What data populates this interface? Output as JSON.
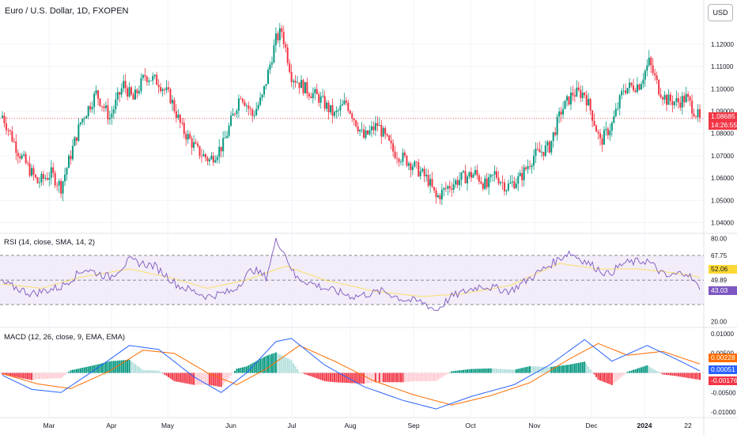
{
  "header": {
    "title": "Euro / U.S. Dollar, 1D, FXOPEN",
    "currency": "USD"
  },
  "rsi_title": "RSI (14, close, SMA, 14, 2)",
  "macd_title": "MACD (12, 26, close, 9, EMA, EMA)",
  "price_badge": {
    "value": "1.08685",
    "countdown": "14:26:55"
  },
  "rsi_badges": {
    "sma": "52.06",
    "rsi": "43.03"
  },
  "macd_badges": {
    "signal": "0.00228",
    "macd": "0.00051",
    "hist": "-0.00176"
  },
  "colors": {
    "up": "#089981",
    "down": "#f23645",
    "up_light": "#b2dfdb",
    "down_light": "#ffcdd2",
    "rsi_line": "#7e57c2",
    "rsi_sma": "#fdd835",
    "macd_line": "#2962ff",
    "signal_line": "#ff6d00",
    "band": "#ede7f6"
  },
  "chart_data": [
    {
      "type": "candlestick",
      "title": "Euro / U.S. Dollar, 1D, FXOPEN",
      "x_ticks": [
        "Mar",
        "Apr",
        "May",
        "Jun",
        "Jul",
        "Aug",
        "Sep",
        "Oct",
        "Nov",
        "Dec",
        "2024",
        "22"
      ],
      "y_ticks": [
        "1.04000",
        "1.05000",
        "1.06000",
        "1.07000",
        "1.08000",
        "1.09000",
        "1.10000",
        "1.11000",
        "1.12000"
      ],
      "ylim": [
        1.037,
        1.132
      ],
      "last_price": 1.08685,
      "anchors": [
        [
          0,
          1.088
        ],
        [
          8,
          1.072
        ],
        [
          18,
          1.058
        ],
        [
          25,
          1.062
        ],
        [
          30,
          1.056
        ],
        [
          40,
          1.085
        ],
        [
          48,
          1.098
        ],
        [
          55,
          1.087
        ],
        [
          62,
          1.102
        ],
        [
          67,
          1.095
        ],
        [
          73,
          1.106
        ],
        [
          80,
          1.103
        ],
        [
          86,
          1.096
        ],
        [
          92,
          1.082
        ],
        [
          100,
          1.072
        ],
        [
          106,
          1.068
        ],
        [
          113,
          1.075
        ],
        [
          122,
          1.098
        ],
        [
          128,
          1.088
        ],
        [
          133,
          1.096
        ],
        [
          140,
          1.122
        ],
        [
          143,
          1.126
        ],
        [
          148,
          1.106
        ],
        [
          155,
          1.1
        ],
        [
          162,
          1.096
        ],
        [
          170,
          1.088
        ],
        [
          176,
          1.094
        ],
        [
          185,
          1.078
        ],
        [
          192,
          1.084
        ],
        [
          200,
          1.072
        ],
        [
          210,
          1.066
        ],
        [
          218,
          1.059
        ],
        [
          222,
          1.051
        ],
        [
          228,
          1.056
        ],
        [
          235,
          1.06
        ],
        [
          242,
          1.062
        ],
        [
          248,
          1.056
        ],
        [
          252,
          1.062
        ],
        [
          258,
          1.056
        ],
        [
          265,
          1.06
        ],
        [
          272,
          1.07
        ],
        [
          280,
          1.074
        ],
        [
          286,
          1.09
        ],
        [
          292,
          1.098
        ],
        [
          298,
          1.098
        ],
        [
          302,
          1.088
        ],
        [
          306,
          1.076
        ],
        [
          312,
          1.084
        ],
        [
          318,
          1.1
        ],
        [
          326,
          1.102
        ],
        [
          331,
          1.112
        ],
        [
          336,
          1.1
        ],
        [
          340,
          1.095
        ],
        [
          346,
          1.094
        ],
        [
          350,
          1.096
        ],
        [
          355,
          1.089
        ],
        [
          357,
          1.0869
        ]
      ]
    },
    {
      "type": "line",
      "title": "RSI (14, close, SMA, 14, 2)",
      "y_ticks": [
        "20.00",
        "49.89",
        "67.75",
        "80.00"
      ],
      "ylim": [
        18,
        82
      ],
      "band": [
        32.25,
        67.75
      ],
      "mid_line": 49.89,
      "series": [
        {
          "values_anchor": [
            [
              0,
              48
            ],
            [
              15,
              40
            ],
            [
              30,
              45
            ],
            [
              42,
              58
            ],
            [
              55,
              52
            ],
            [
              65,
              64
            ],
            [
              78,
              60
            ],
            [
              90,
              46
            ],
            [
              105,
              38
            ],
            [
              118,
              42
            ],
            [
              128,
              58
            ],
            [
              135,
              52
            ],
            [
              140,
              78
            ],
            [
              143,
              74
            ],
            [
              150,
              52
            ],
            [
              165,
              44
            ],
            [
              180,
              38
            ],
            [
              195,
              42
            ],
            [
              205,
              36
            ],
            [
              215,
              34
            ],
            [
              222,
              28
            ],
            [
              230,
              38
            ],
            [
              245,
              46
            ],
            [
              260,
              42
            ],
            [
              275,
              56
            ],
            [
              290,
              70
            ],
            [
              300,
              62
            ],
            [
              310,
              54
            ],
            [
              318,
              62
            ],
            [
              330,
              64
            ],
            [
              340,
              52
            ],
            [
              350,
              56
            ],
            [
              357,
              43.03
            ]
          ]
        },
        {
          "values_anchor": [
            [
              0,
              47
            ],
            [
              20,
              44
            ],
            [
              40,
              52
            ],
            [
              65,
              58
            ],
            [
              85,
              52
            ],
            [
              105,
              44
            ],
            [
              125,
              50
            ],
            [
              145,
              60
            ],
            [
              165,
              50
            ],
            [
              190,
              42
            ],
            [
              215,
              38
            ],
            [
              235,
              40
            ],
            [
              260,
              46
            ],
            [
              285,
              62
            ],
            [
              305,
              58
            ],
            [
              325,
              58
            ],
            [
              345,
              55
            ],
            [
              357,
              52.06
            ]
          ]
        }
      ]
    },
    {
      "type": "line+bar",
      "title": "MACD (12, 26, close, 9, EMA, EMA)",
      "y_ticks": [
        "-0.01000",
        "-0.00500",
        "0.00500",
        "0.01000"
      ],
      "ylim": [
        -0.0108,
        0.0108
      ],
      "series": [
        {
          "values_anchor": [
            [
              0,
              -0.0006
            ],
            [
              15,
              -0.0042
            ],
            [
              30,
              -0.005
            ],
            [
              48,
              0.001
            ],
            [
              65,
              0.007
            ],
            [
              80,
              0.006
            ],
            [
              98,
              -0.001
            ],
            [
              112,
              -0.005
            ],
            [
              125,
              0.0
            ],
            [
              140,
              0.008
            ],
            [
              148,
              0.0088
            ],
            [
              165,
              0.002
            ],
            [
              185,
              -0.0035
            ],
            [
              205,
              -0.007
            ],
            [
              222,
              -0.0092
            ],
            [
              240,
              -0.006
            ],
            [
              262,
              -0.003
            ],
            [
              280,
              0.002
            ],
            [
              298,
              0.0085
            ],
            [
              312,
              0.003
            ],
            [
              330,
              0.007
            ],
            [
              345,
              0.0035
            ],
            [
              357,
              0.00051
            ]
          ]
        },
        {
          "values_anchor": [
            [
              0,
              -0.0002
            ],
            [
              18,
              -0.0028
            ],
            [
              35,
              -0.004
            ],
            [
              55,
              0.0005
            ],
            [
              72,
              0.0058
            ],
            [
              88,
              0.005
            ],
            [
              105,
              0.0
            ],
            [
              120,
              -0.003
            ],
            [
              135,
              0.001
            ],
            [
              152,
              0.007
            ],
            [
              170,
              0.003
            ],
            [
              190,
              -0.002
            ],
            [
              210,
              -0.0055
            ],
            [
              230,
              -0.0082
            ],
            [
              250,
              -0.0058
            ],
            [
              270,
              -0.0025
            ],
            [
              290,
              0.0035
            ],
            [
              305,
              0.0075
            ],
            [
              320,
              0.0045
            ],
            [
              338,
              0.0055
            ],
            [
              357,
              0.00228
            ]
          ]
        }
      ]
    }
  ]
}
